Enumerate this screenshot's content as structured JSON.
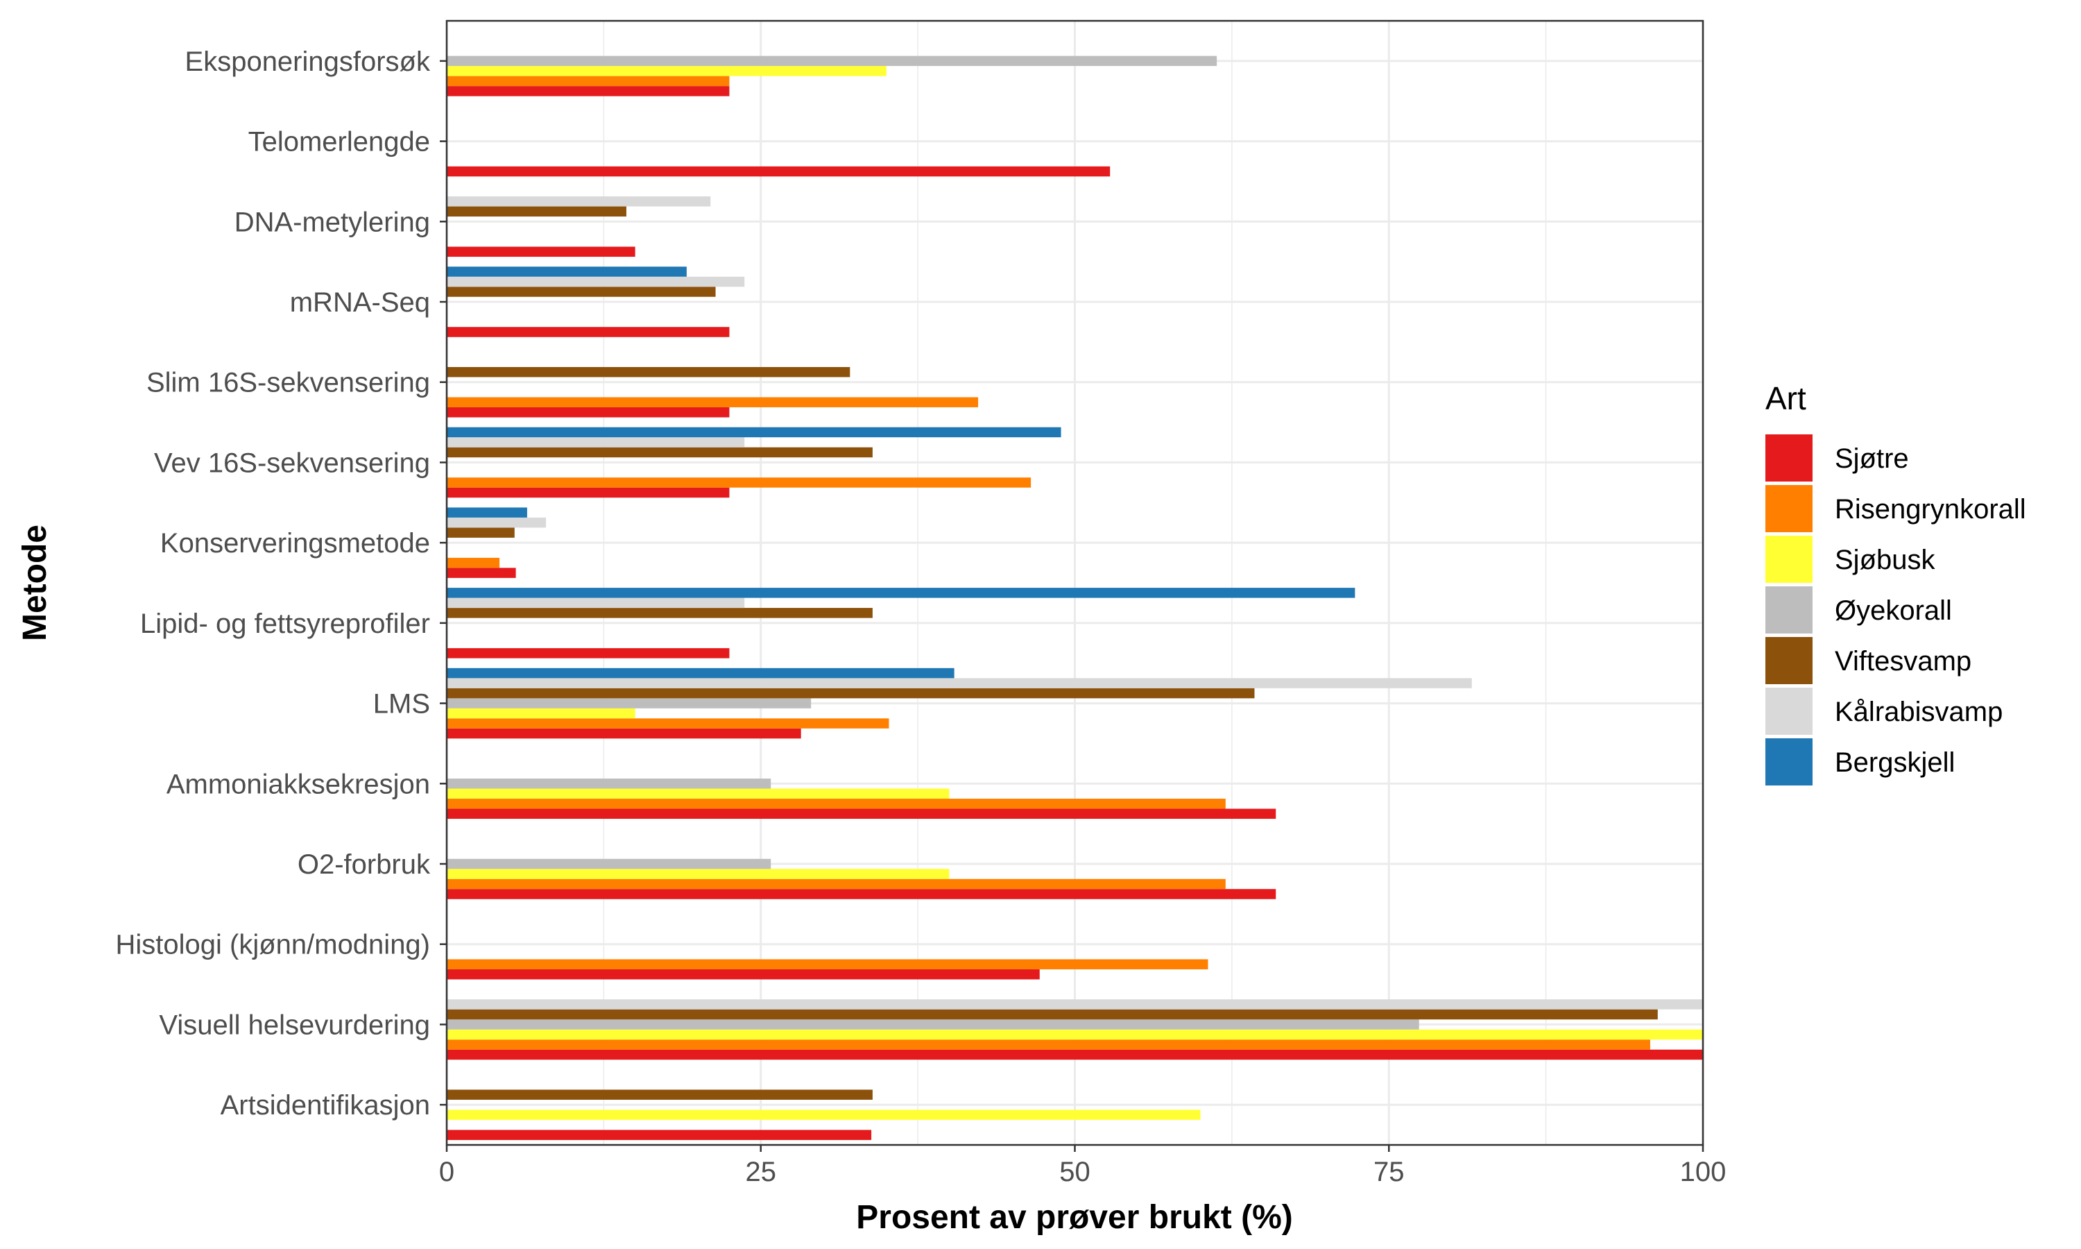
{
  "chart_data": {
    "type": "bar",
    "orientation": "horizontal",
    "xlabel": "Prosent av prøver brukt (%)",
    "ylabel": "Metode",
    "xlim": [
      0,
      100
    ],
    "x_ticks": [
      "0",
      "25",
      "50",
      "75",
      "100"
    ],
    "grid": true,
    "legend_title": "Art",
    "legend_position": "right",
    "categories": [
      "Eksponeringsforsøk",
      "Telomerlengde",
      "DNA-metylering",
      "mRNA-Seq",
      "Slim 16S-sekvensering",
      "Vev 16S-sekvensering",
      "Konserveringsmetode",
      "Lipid- og fettsyreprofiler",
      "LMS",
      "Ammoniakksekresjon",
      "O2-forbruk",
      "Histologi (kjønn/modning)",
      "Visuell helsevurdering",
      "Artsidentifikasjon"
    ],
    "series": [
      {
        "name": "Sjøtre",
        "color": "#e41a1c",
        "values": [
          22.5,
          52.8,
          15,
          22.5,
          22.5,
          22.5,
          5.5,
          22.5,
          28.2,
          66,
          66,
          47.2,
          100,
          33.8
        ]
      },
      {
        "name": "Risengrynkorall",
        "color": "#ff7f00",
        "values": [
          22.5,
          null,
          null,
          null,
          42.3,
          46.5,
          4.2,
          null,
          35.2,
          62,
          62,
          60.6,
          95.8,
          null
        ]
      },
      {
        "name": "Sjøbusk",
        "color": "#ffff33",
        "values": [
          35,
          null,
          null,
          null,
          null,
          null,
          null,
          null,
          15,
          40,
          40,
          null,
          100,
          60
        ]
      },
      {
        "name": "Øyekorall",
        "color": "#bdbdbd",
        "values": [
          61.3,
          null,
          null,
          null,
          null,
          null,
          null,
          null,
          29,
          25.8,
          25.8,
          null,
          77.4,
          null
        ]
      },
      {
        "name": "Viftesvamp",
        "color": "#8c510a",
        "values": [
          null,
          null,
          14.3,
          21.4,
          32.1,
          33.9,
          5.4,
          33.9,
          64.3,
          null,
          null,
          null,
          96.4,
          33.9
        ]
      },
      {
        "name": "Kålrabisvamp",
        "color": "#d9d9d9",
        "values": [
          null,
          null,
          21,
          23.7,
          null,
          23.7,
          7.9,
          23.7,
          81.6,
          null,
          null,
          null,
          100,
          null
        ]
      },
      {
        "name": "Bergskjell",
        "color": "#1f78b4",
        "values": [
          null,
          null,
          null,
          19.1,
          null,
          48.9,
          6.4,
          72.3,
          40.4,
          null,
          null,
          null,
          null,
          null
        ]
      }
    ]
  }
}
